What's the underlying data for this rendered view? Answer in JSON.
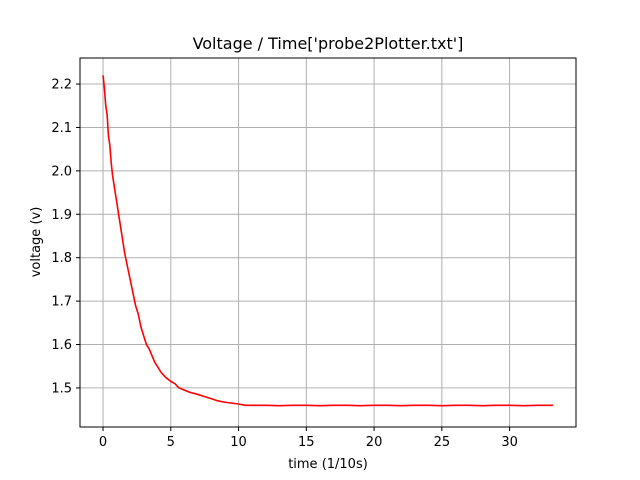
{
  "chart_data": {
    "type": "line",
    "title": "Voltage / Time['probe2Plotter.txt']",
    "xlabel": "time (1/10s)",
    "ylabel": "voltage (v)",
    "xlim": [
      -1.7,
      34.9
    ],
    "ylim": [
      1.41,
      2.26
    ],
    "xticks": [
      0,
      5,
      10,
      15,
      20,
      25,
      30
    ],
    "yticks": [
      1.5,
      1.6,
      1.7,
      1.8,
      1.9,
      2.0,
      2.1,
      2.2
    ],
    "xtick_labels": [
      "0",
      "5",
      "10",
      "15",
      "20",
      "25",
      "30"
    ],
    "ytick_labels": [
      "1.5",
      "1.6",
      "1.7",
      "1.8",
      "1.9",
      "2.0",
      "2.1",
      "2.2"
    ],
    "grid": true,
    "series": [
      {
        "color": "#ff0000",
        "x": [
          0.0,
          0.1,
          0.2,
          0.3,
          0.4,
          0.5,
          0.6,
          0.7,
          0.8,
          0.9,
          1.0,
          1.2,
          1.4,
          1.6,
          1.8,
          2.0,
          2.2,
          2.4,
          2.6,
          2.8,
          3.0,
          3.2,
          3.4,
          3.6,
          3.8,
          4.0,
          4.3,
          4.6,
          5.0,
          5.3,
          5.6,
          6.0,
          6.4,
          7.0,
          7.5,
          8.0,
          8.5,
          9.0,
          9.5,
          10.0,
          10.5,
          11.0,
          12.0,
          13.0,
          14.0,
          15.0,
          16.0,
          17.0,
          18.0,
          19.0,
          20.0,
          21.0,
          22.0,
          23.0,
          24.0,
          25.0,
          26.0,
          27.0,
          28.0,
          29.0,
          30.0,
          31.0,
          32.0,
          33.2
        ],
        "y": [
          2.22,
          2.19,
          2.15,
          2.13,
          2.08,
          2.06,
          2.02,
          1.99,
          1.97,
          1.95,
          1.93,
          1.89,
          1.85,
          1.81,
          1.78,
          1.75,
          1.72,
          1.69,
          1.67,
          1.64,
          1.62,
          1.6,
          1.59,
          1.575,
          1.56,
          1.55,
          1.535,
          1.525,
          1.515,
          1.51,
          1.5,
          1.495,
          1.49,
          1.485,
          1.48,
          1.475,
          1.47,
          1.467,
          1.465,
          1.463,
          1.46,
          1.46,
          1.46,
          1.459,
          1.46,
          1.46,
          1.459,
          1.46,
          1.46,
          1.459,
          1.46,
          1.46,
          1.459,
          1.46,
          1.46,
          1.459,
          1.46,
          1.46,
          1.459,
          1.46,
          1.46,
          1.459,
          1.46,
          1.46
        ]
      }
    ]
  }
}
